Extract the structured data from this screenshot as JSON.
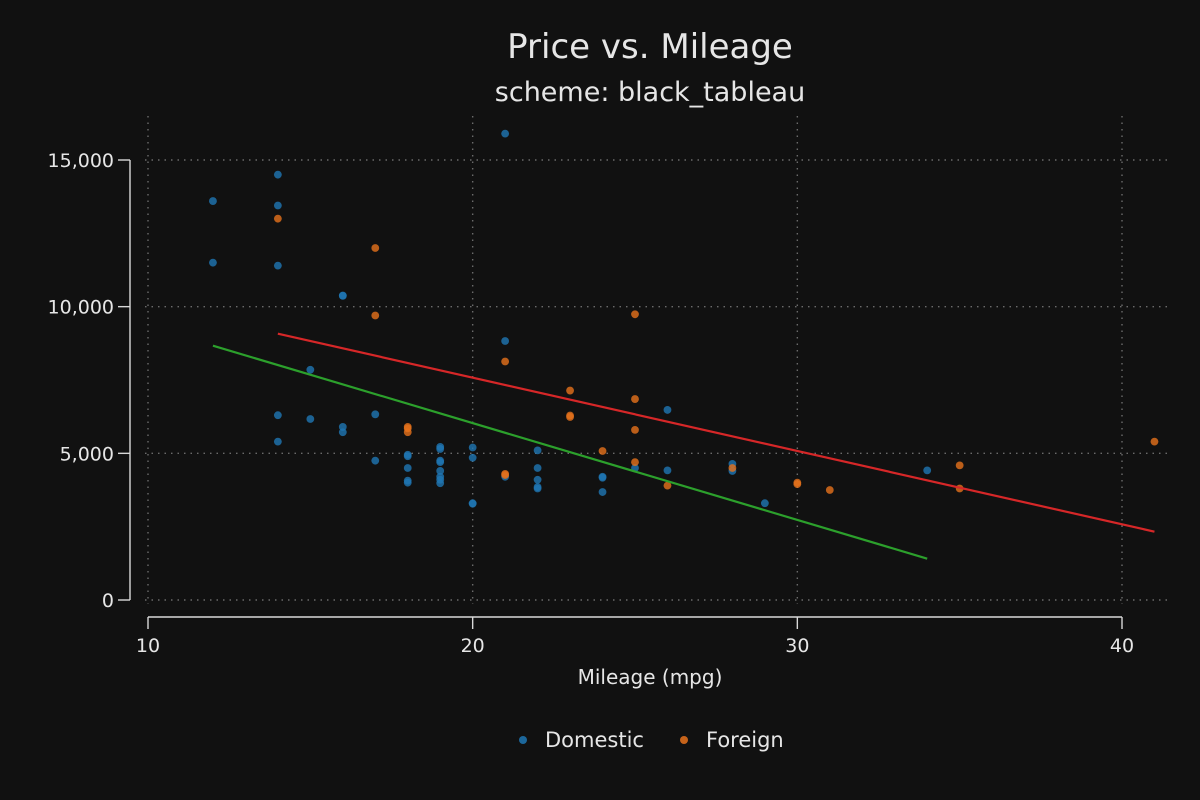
{
  "chart_data": {
    "type": "scatter",
    "title": "Price vs. Mileage",
    "subtitle": "scheme: black_tableau",
    "xlabel": "Mileage (mpg)",
    "ylabel": "",
    "xlim": [
      10,
      41.5
    ],
    "ylim": [
      0,
      16000
    ],
    "x_ticks": [
      10,
      20,
      30,
      40
    ],
    "x_tick_labels": [
      "10",
      "20",
      "30",
      "40"
    ],
    "y_ticks": [
      0,
      5000,
      10000,
      15000
    ],
    "y_tick_labels": [
      "0",
      "5,000",
      "10,000",
      "15,000"
    ],
    "grid": true,
    "legend_position": "bottom",
    "series": [
      {
        "name": "Domestic",
        "color": "#1f77b4",
        "points": [
          [
            12,
            13600
          ],
          [
            12,
            11500
          ],
          [
            14,
            14500
          ],
          [
            14,
            13450
          ],
          [
            14,
            11400
          ],
          [
            14,
            6300
          ],
          [
            14,
            5400
          ],
          [
            15,
            7850
          ],
          [
            15,
            6170
          ],
          [
            16,
            10380
          ],
          [
            16,
            10370
          ],
          [
            16,
            5900
          ],
          [
            16,
            5720
          ],
          [
            17,
            6330
          ],
          [
            17,
            4750
          ],
          [
            18,
            4950
          ],
          [
            18,
            4900
          ],
          [
            18,
            4500
          ],
          [
            18,
            4070
          ],
          [
            18,
            4000
          ],
          [
            19,
            5220
          ],
          [
            19,
            5150
          ],
          [
            19,
            4750
          ],
          [
            19,
            4700
          ],
          [
            19,
            4400
          ],
          [
            19,
            4200
          ],
          [
            19,
            4100
          ],
          [
            19,
            3980
          ],
          [
            20,
            5200
          ],
          [
            20,
            4850
          ],
          [
            20,
            3300
          ],
          [
            20,
            3280
          ],
          [
            21,
            15900
          ],
          [
            21,
            8830
          ],
          [
            21,
            4200
          ],
          [
            22,
            5100
          ],
          [
            22,
            4500
          ],
          [
            22,
            4100
          ],
          [
            22,
            3850
          ],
          [
            22,
            3800
          ],
          [
            24,
            4200
          ],
          [
            24,
            4170
          ],
          [
            24,
            3680
          ],
          [
            25,
            4500
          ],
          [
            26,
            6480
          ],
          [
            26,
            4420
          ],
          [
            28,
            4640
          ],
          [
            28,
            4400
          ],
          [
            29,
            3300
          ],
          [
            34,
            4420
          ]
        ]
      },
      {
        "name": "Foreign",
        "color": "#e6721c",
        "points": [
          [
            14,
            13000
          ],
          [
            17,
            12000
          ],
          [
            17,
            9700
          ],
          [
            18,
            5900
          ],
          [
            18,
            5850
          ],
          [
            18,
            5720
          ],
          [
            21,
            8130
          ],
          [
            21,
            4300
          ],
          [
            21,
            4260
          ],
          [
            23,
            7140
          ],
          [
            23,
            6290
          ],
          [
            23,
            6240
          ],
          [
            24,
            5080
          ],
          [
            25,
            9740
          ],
          [
            25,
            6850
          ],
          [
            25,
            5800
          ],
          [
            25,
            4700
          ],
          [
            26,
            3900
          ],
          [
            28,
            4500
          ],
          [
            30,
            4000
          ],
          [
            30,
            3950
          ],
          [
            31,
            3750
          ],
          [
            35,
            4590
          ],
          [
            35,
            3800
          ],
          [
            41,
            5400
          ]
        ]
      }
    ],
    "fit_lines": [
      {
        "series": "Domestic",
        "color": "#2ca02c",
        "x": [
          12,
          34
        ],
        "y": [
          8670,
          1410
        ]
      },
      {
        "series": "Foreign",
        "color": "#d62728",
        "x": [
          14,
          41
        ],
        "y": [
          9080,
          2330
        ]
      }
    ]
  }
}
